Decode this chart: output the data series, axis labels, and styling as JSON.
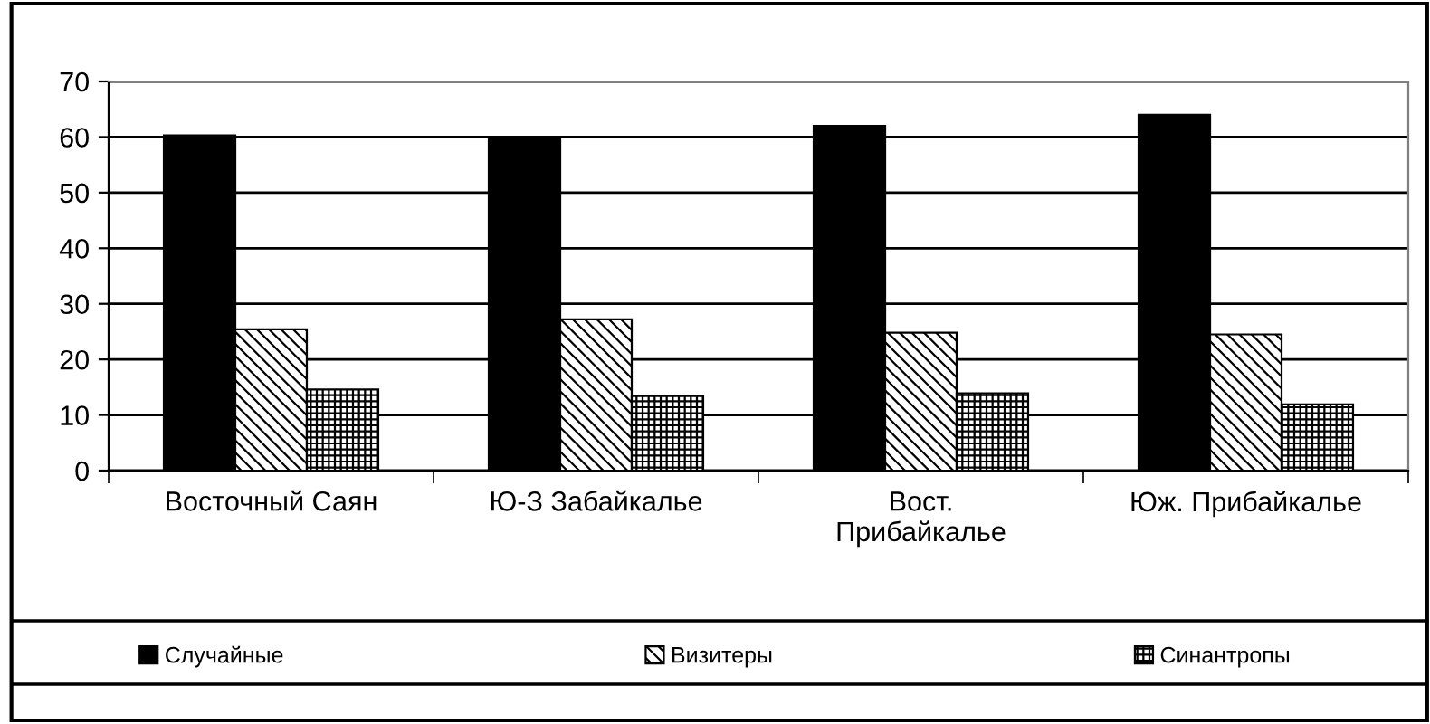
{
  "chart_data": {
    "type": "bar",
    "categories": [
      "Восточный Саян",
      "Ю-З Забайкалье",
      "Вост.\nПрибайкалье",
      "Юж. Прибайкалье"
    ],
    "series": [
      {
        "name": "Случайные",
        "color": "#000000",
        "values": [
          60.3,
          59.9,
          62.0,
          64.0
        ]
      },
      {
        "name": "Визитеры",
        "color": "#000000",
        "values": [
          25.4,
          27.2,
          24.8,
          24.5
        ]
      },
      {
        "name": "Синантропы",
        "color": "#000000",
        "values": [
          14.6,
          13.4,
          13.9,
          11.9
        ]
      }
    ],
    "ylim": [
      0,
      70
    ],
    "yticks": [
      0,
      10,
      20,
      30,
      40,
      50,
      60,
      70
    ],
    "grid": "y",
    "legend": "bottom"
  }
}
